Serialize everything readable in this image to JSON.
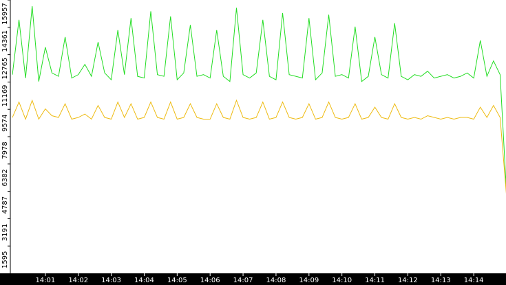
{
  "chart_data": {
    "type": "line",
    "x": [
      840,
      840.2,
      840.4,
      840.6,
      840.8,
      841,
      841.2,
      841.4,
      841.6,
      841.8,
      842,
      842.2,
      842.4,
      842.6,
      842.8,
      843,
      843.2,
      843.4,
      843.6,
      843.8,
      844,
      844.2,
      844.4,
      844.6,
      844.8,
      845,
      845.2,
      845.4,
      845.6,
      845.8,
      846,
      846.2,
      846.4,
      846.6,
      846.8,
      847,
      847.2,
      847.4,
      847.6,
      847.8,
      848,
      848.2,
      848.4,
      848.6,
      848.8,
      849,
      849.2,
      849.4,
      849.6,
      849.8,
      850,
      850.2,
      850.4,
      850.6,
      850.8,
      851,
      851.2,
      851.4,
      851.6,
      851.8,
      852,
      852.2,
      852.4,
      852.6,
      852.8,
      853,
      853.2,
      853.4,
      853.6,
      853.8,
      854,
      854.2,
      854.4,
      854.6,
      854.8,
      855
    ],
    "series": [
      {
        "color": "#22dd22",
        "values": [
          11600,
          14800,
          11400,
          15600,
          11200,
          13200,
          11700,
          11500,
          13800,
          11400,
          11600,
          12200,
          11500,
          13500,
          11700,
          11300,
          14200,
          11600,
          14900,
          11500,
          11400,
          15300,
          11600,
          11500,
          15000,
          11300,
          11700,
          14500,
          11500,
          11600,
          11400,
          14200,
          11500,
          11200,
          15500,
          11600,
          11400,
          11700,
          14800,
          11500,
          11300,
          15200,
          11600,
          11500,
          11400,
          14900,
          11300,
          11700,
          15100,
          11500,
          11600,
          11400,
          14400,
          11200,
          11500,
          13800,
          11600,
          11400,
          14600,
          11500,
          11300,
          11600,
          11500,
          11800,
          11400,
          11500,
          11600,
          11400,
          11500,
          11700,
          11400,
          13600,
          11500,
          12400,
          11600,
          4500
        ]
      },
      {
        "color": "#eebb11",
        "values": [
          9100,
          10000,
          9000,
          10100,
          9000,
          9600,
          9200,
          9100,
          9900,
          9000,
          9100,
          9300,
          9000,
          9800,
          9100,
          9000,
          10000,
          9100,
          9900,
          9000,
          9100,
          10000,
          9100,
          9000,
          10000,
          9000,
          9100,
          9900,
          9100,
          9000,
          9000,
          9900,
          9100,
          9000,
          10100,
          9100,
          9000,
          9100,
          10000,
          9000,
          9100,
          10000,
          9100,
          9000,
          9100,
          9900,
          9000,
          9100,
          10000,
          9100,
          9000,
          9100,
          9900,
          9000,
          9100,
          9700,
          9100,
          9000,
          9900,
          9100,
          9000,
          9100,
          9000,
          9200,
          9100,
          9000,
          9100,
          9000,
          9100,
          9100,
          9000,
          9700,
          9100,
          9800,
          9100,
          4400
        ]
      }
    ],
    "xlim": [
      840,
      855
    ],
    "xticks": [
      {
        "value": 841,
        "label": "14:01"
      },
      {
        "value": 842,
        "label": "14:02"
      },
      {
        "value": 843,
        "label": "14:03"
      },
      {
        "value": 844,
        "label": "14:04"
      },
      {
        "value": 845,
        "label": "14:05"
      },
      {
        "value": 846,
        "label": "14:06"
      },
      {
        "value": 847,
        "label": "14:07"
      },
      {
        "value": 848,
        "label": "14:08"
      },
      {
        "value": 849,
        "label": "14:09"
      },
      {
        "value": 850,
        "label": "14:10"
      },
      {
        "value": 851,
        "label": "14:11"
      },
      {
        "value": 852,
        "label": "14:12"
      },
      {
        "value": 853,
        "label": "14:13"
      },
      {
        "value": 854,
        "label": "14:14"
      }
    ],
    "ylim": [
      0,
      15957
    ],
    "yticks": [
      1595,
      3191,
      4787,
      6382,
      7978,
      9574,
      11169,
      12765,
      14361,
      15957
    ]
  }
}
